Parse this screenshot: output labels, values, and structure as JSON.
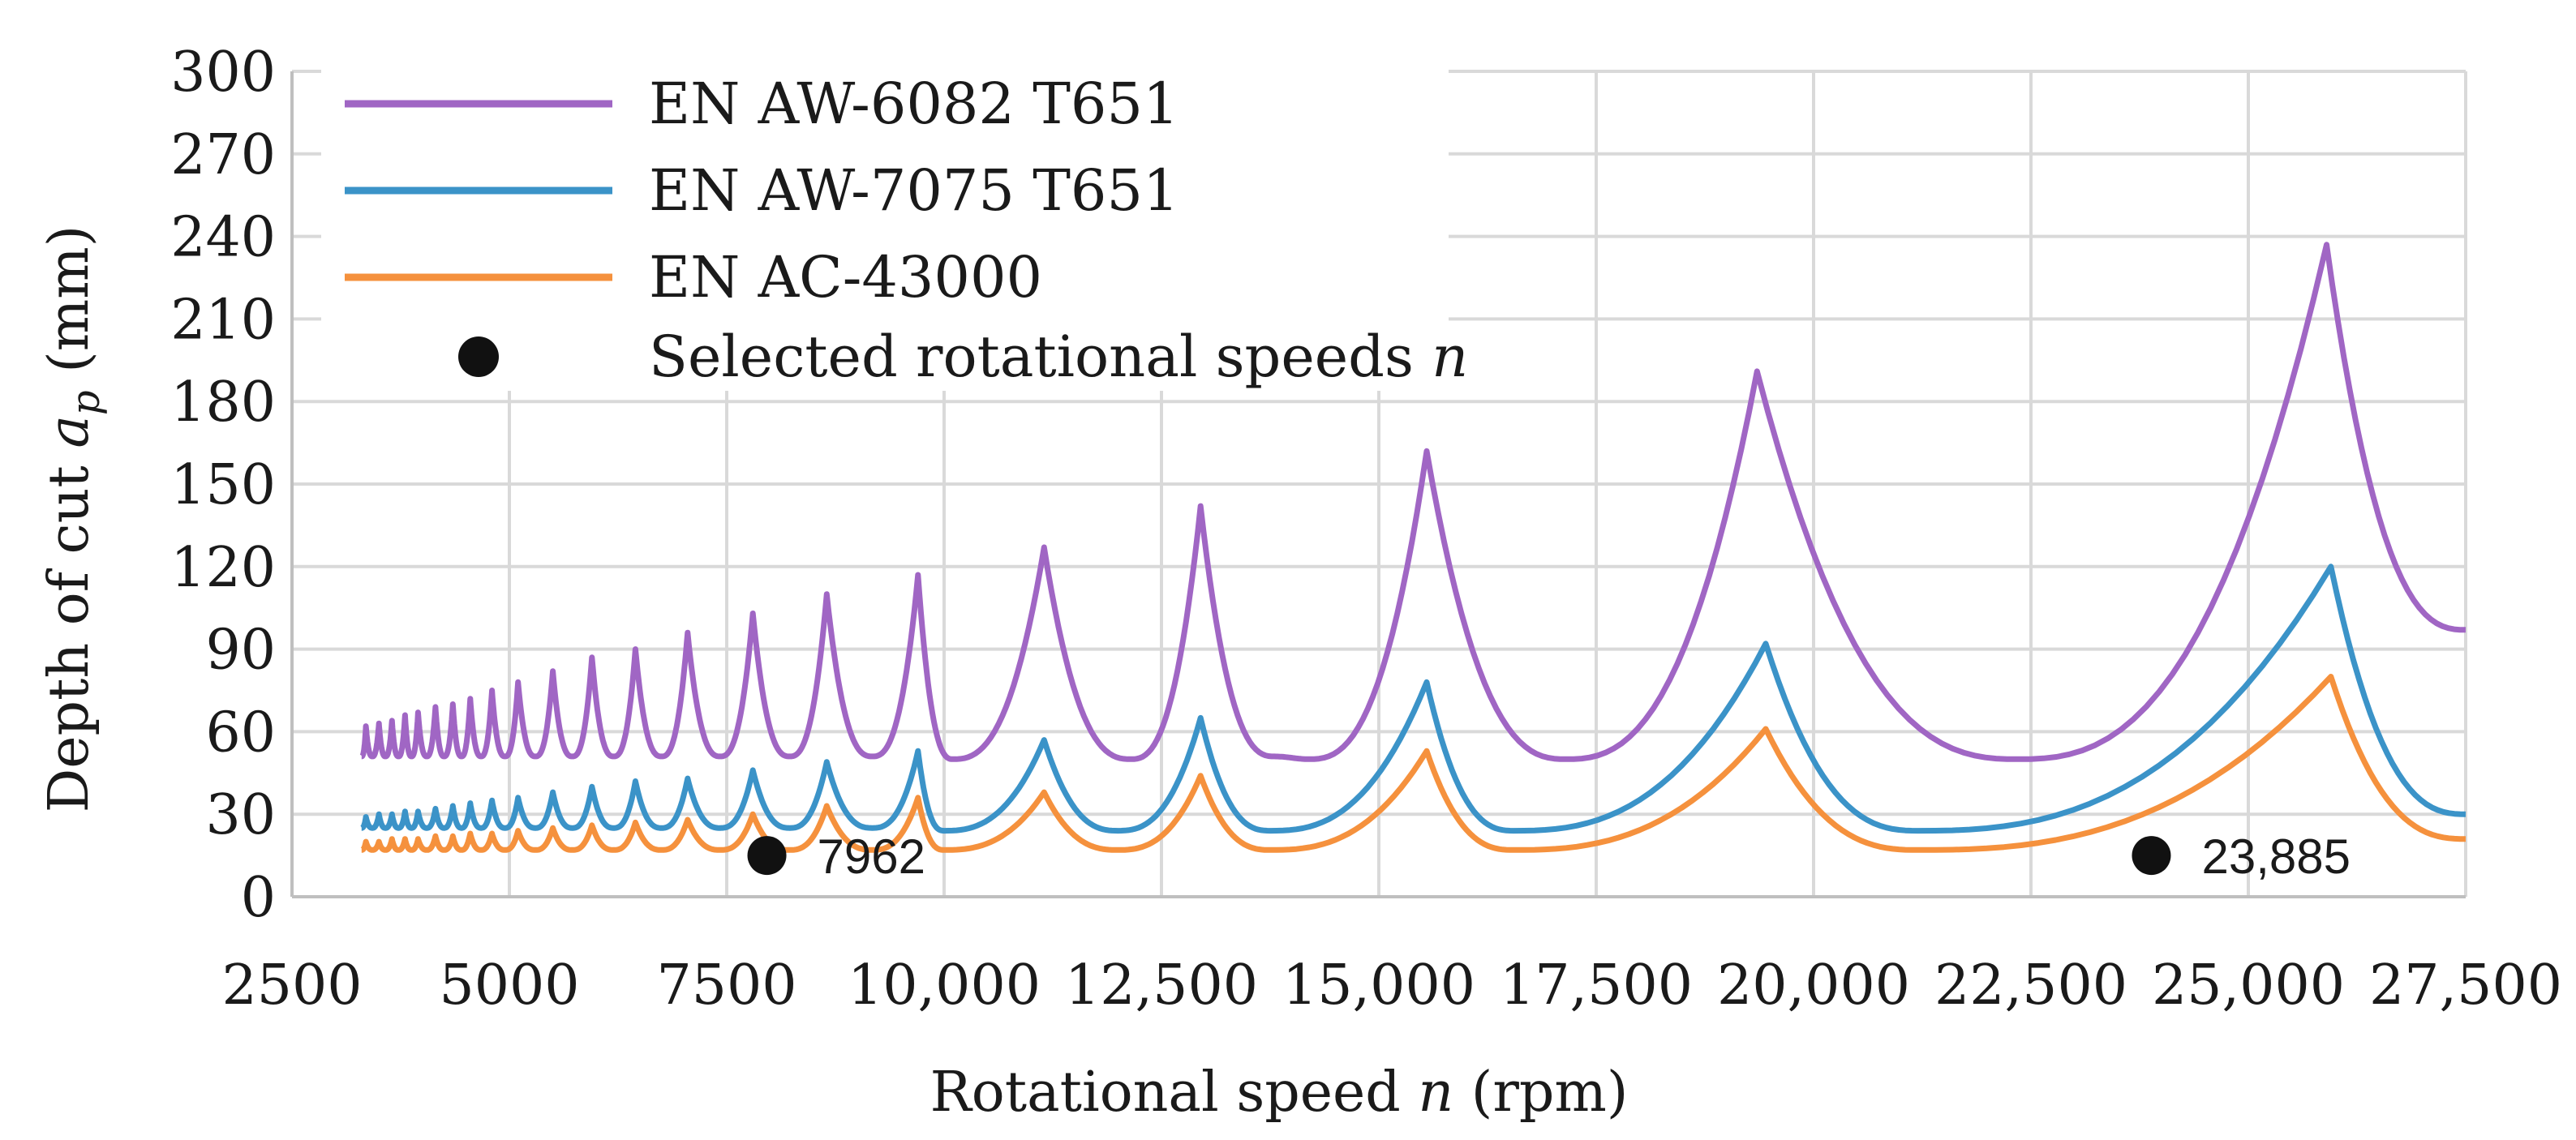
{
  "chart_data": {
    "type": "line",
    "title": "",
    "xlabel": {
      "prefix": "Rotational speed ",
      "var": "n",
      "suffix": " (rpm)"
    },
    "ylabel": {
      "prefix": "Depth of cut ",
      "var": "a",
      "sub": "p",
      "suffix": " (mm)"
    },
    "xlim": [
      2500,
      27500
    ],
    "ylim": [
      0,
      300
    ],
    "x_ticks": [
      {
        "value": 2500,
        "label": "2500"
      },
      {
        "value": 5000,
        "label": "5000"
      },
      {
        "value": 7500,
        "label": "7500"
      },
      {
        "value": 10000,
        "label": "10,000"
      },
      {
        "value": 12500,
        "label": "12,500"
      },
      {
        "value": 15000,
        "label": "15,000"
      },
      {
        "value": 17500,
        "label": "17,500"
      },
      {
        "value": 20000,
        "label": "20,000"
      },
      {
        "value": 22500,
        "label": "22,500"
      },
      {
        "value": 25000,
        "label": "25,000"
      },
      {
        "value": 27500,
        "label": "27,500"
      }
    ],
    "y_ticks": [
      {
        "value": 0,
        "label": "0"
      },
      {
        "value": 30,
        "label": "30"
      },
      {
        "value": 60,
        "label": "60"
      },
      {
        "value": 90,
        "label": "90"
      },
      {
        "value": 120,
        "label": "120"
      },
      {
        "value": 150,
        "label": "150"
      },
      {
        "value": 180,
        "label": "180"
      },
      {
        "value": 210,
        "label": "210"
      },
      {
        "value": 240,
        "label": "240"
      },
      {
        "value": 270,
        "label": "270"
      },
      {
        "value": 300,
        "label": "300"
      }
    ],
    "grid": true,
    "legend_position": "top-left",
    "series": [
      {
        "name": "EN AW-6082 T651",
        "color": "#A066C4",
        "x_range": [
          3300,
          27500
        ],
        "base": 51,
        "peaks": [
          [
            3350,
            62
          ],
          [
            3500,
            63
          ],
          [
            3650,
            64
          ],
          [
            3800,
            66
          ],
          [
            3950,
            67
          ],
          [
            4150,
            69
          ],
          [
            4350,
            70
          ],
          [
            4550,
            72
          ],
          [
            4800,
            75
          ],
          [
            5100,
            78
          ],
          [
            5500,
            82
          ],
          [
            5950,
            87
          ],
          [
            6450,
            90
          ],
          [
            7050,
            96
          ],
          [
            7800,
            103
          ],
          [
            8650,
            110
          ],
          [
            9700,
            117
          ],
          [
            11150,
            127
          ],
          [
            12950,
            142
          ],
          [
            15550,
            162
          ],
          [
            19350,
            191
          ],
          [
            25900,
            237
          ]
        ],
        "valleys": [
          [
            10100,
            50
          ],
          [
            12150,
            50
          ],
          [
            13800,
            51
          ],
          [
            14200,
            50
          ],
          [
            17150,
            50
          ],
          [
            22350,
            50
          ],
          [
            27500,
            97
          ]
        ]
      },
      {
        "name": "EN AW-7075 T651",
        "color": "#3B93C8",
        "x_range": [
          3300,
          27500
        ],
        "base": 25,
        "peaks": [
          [
            3350,
            29
          ],
          [
            3500,
            30
          ],
          [
            3650,
            30
          ],
          [
            3800,
            31
          ],
          [
            3950,
            31
          ],
          [
            4150,
            32
          ],
          [
            4350,
            33
          ],
          [
            4550,
            34
          ],
          [
            4800,
            35
          ],
          [
            5100,
            36
          ],
          [
            5500,
            38
          ],
          [
            5950,
            40
          ],
          [
            6450,
            42
          ],
          [
            7050,
            43
          ],
          [
            7800,
            46
          ],
          [
            8650,
            49
          ],
          [
            9700,
            53
          ],
          [
            11150,
            57
          ],
          [
            12950,
            65
          ],
          [
            15550,
            78
          ],
          [
            19450,
            92
          ],
          [
            25950,
            120
          ]
        ],
        "valleys": [
          [
            10000,
            24
          ],
          [
            12000,
            24
          ],
          [
            13750,
            24
          ],
          [
            16550,
            24
          ],
          [
            21200,
            24
          ],
          [
            27500,
            30
          ]
        ]
      },
      {
        "name": "EN AC-43000",
        "color": "#F5913D",
        "x_range": [
          3300,
          27500
        ],
        "base": 17,
        "peaks": [
          [
            3350,
            20
          ],
          [
            3500,
            20
          ],
          [
            3650,
            21
          ],
          [
            3800,
            21
          ],
          [
            3950,
            21
          ],
          [
            4150,
            22
          ],
          [
            4350,
            22
          ],
          [
            4550,
            23
          ],
          [
            4800,
            23
          ],
          [
            5100,
            24
          ],
          [
            5500,
            25
          ],
          [
            5950,
            26
          ],
          [
            6450,
            27
          ],
          [
            7050,
            28
          ],
          [
            7800,
            30
          ],
          [
            8650,
            33
          ],
          [
            9700,
            36
          ],
          [
            11150,
            38
          ],
          [
            12950,
            44
          ],
          [
            15550,
            53
          ],
          [
            19450,
            61
          ],
          [
            25950,
            80
          ]
        ],
        "valleys": [
          [
            10000,
            17
          ],
          [
            12000,
            17
          ],
          [
            13750,
            17
          ],
          [
            16550,
            17
          ],
          [
            21200,
            17
          ],
          [
            27500,
            21
          ]
        ]
      }
    ],
    "selected_points": {
      "name": "Selected rotational speeds ",
      "var": "n",
      "color": "#111111",
      "points": [
        {
          "x": 7962,
          "y": 15,
          "label": "7962"
        },
        {
          "x": 23885,
          "y": 15,
          "label": "23,885"
        }
      ]
    }
  }
}
